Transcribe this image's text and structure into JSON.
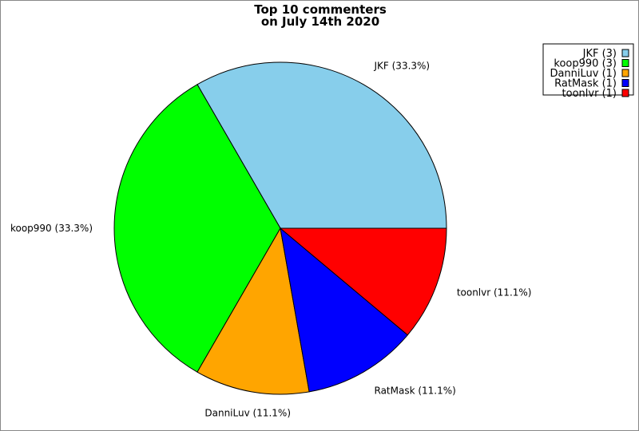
{
  "chart_data": {
    "type": "pie",
    "title": [
      "Top 10 commenters",
      "on July 14th 2020"
    ],
    "start_angle_deg": 0,
    "direction": "counterclockwise",
    "slices": [
      {
        "name": "JKF",
        "value": 3,
        "label": "JKF (33.3%)",
        "legend": "JKF (3)",
        "color": "#87CEEB"
      },
      {
        "name": "koop990",
        "value": 3,
        "label": "koop990 (33.3%)",
        "legend": "koop990 (3)",
        "color": "#00FF00"
      },
      {
        "name": "DanniLuv",
        "value": 1,
        "label": "DanniLuv (11.1%)",
        "legend": "DanniLuv (1)",
        "color": "#FFA500"
      },
      {
        "name": "RatMask",
        "value": 1,
        "label": "RatMask (11.1%)",
        "legend": "RatMask (1)",
        "color": "#0000FF"
      },
      {
        "name": "toonlvr",
        "value": 1,
        "label": "toonlvr (11.1%)",
        "legend": "toonlvr (1)",
        "color": "#FF0000"
      }
    ],
    "legend_position": "top-right"
  }
}
